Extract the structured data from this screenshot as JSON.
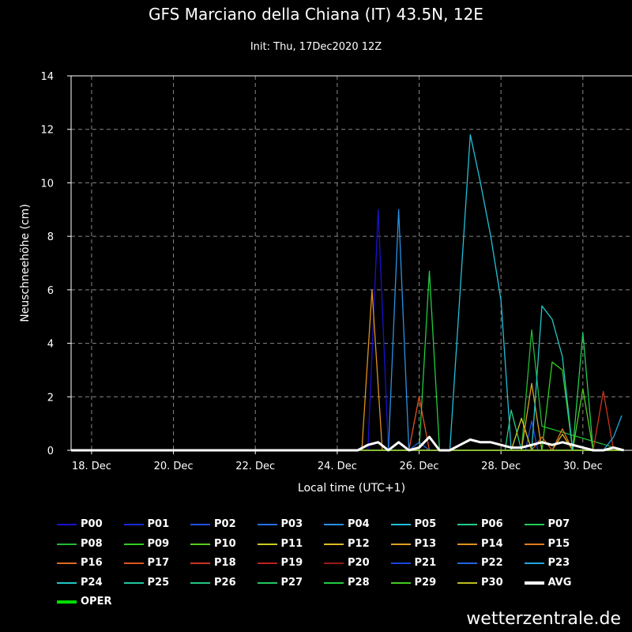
{
  "title": "GFS Marciano della Chiana (IT) 43.5N, 12E",
  "subtitle": "Init: Thu, 17Dec2020 12Z",
  "watermark": "wetterzentrale.de",
  "chart_data": {
    "type": "line",
    "xlabel": "Local time (UTC+1)",
    "ylabel": "Neuschneehöhe (cm)",
    "xlim": [
      17.5,
      31.2
    ],
    "ylim": [
      0,
      14
    ],
    "x_ticks": [
      18,
      20,
      22,
      24,
      26,
      28,
      30
    ],
    "x_tick_labels": [
      "18. Dec",
      "20. Dec",
      "22. Dec",
      "24. Dec",
      "26. Dec",
      "28. Dec",
      "30. Dec"
    ],
    "y_ticks": [
      0,
      2,
      4,
      6,
      8,
      10,
      12,
      14
    ],
    "y_tick_labels": [
      "0",
      "2",
      "4",
      "6",
      "8",
      "10",
      "12",
      "14"
    ],
    "grid": true,
    "series": [
      {
        "name": "P00",
        "color": "#1a10d0",
        "x": [
          17.5,
          24.75,
          25.0,
          25.25,
          31.0
        ],
        "y": [
          0,
          0,
          9.0,
          0,
          0
        ]
      },
      {
        "name": "P01",
        "color": "#1a2ad8",
        "x": [
          17.5,
          31.0
        ],
        "y": [
          0,
          0
        ]
      },
      {
        "name": "P02",
        "color": "#1f4fe0",
        "x": [
          17.5,
          28.6,
          28.75,
          28.9,
          31.0
        ],
        "y": [
          0,
          0,
          1.1,
          0,
          0
        ]
      },
      {
        "name": "P03",
        "color": "#2470e6",
        "x": [
          17.5,
          31.0
        ],
        "y": [
          0,
          0
        ]
      },
      {
        "name": "P04",
        "color": "#2a90e6",
        "x": [
          17.5,
          25.25,
          25.5,
          25.75,
          31.0
        ],
        "y": [
          0,
          0,
          9.0,
          0,
          0
        ]
      },
      {
        "name": "P05",
        "color": "#21c0d8",
        "x": [
          17.5,
          26.75,
          27.25,
          27.5,
          27.75,
          28.0,
          28.25,
          28.5,
          31.0
        ],
        "y": [
          0,
          0,
          11.8,
          10.0,
          8.0,
          5.6,
          0,
          0,
          0
        ]
      },
      {
        "name": "P06",
        "color": "#22cc88",
        "x": [
          17.5,
          28.1,
          28.25,
          28.5,
          31.0
        ],
        "y": [
          0,
          0,
          1.5,
          0,
          0
        ]
      },
      {
        "name": "P07",
        "color": "#22cc55",
        "x": [
          17.5,
          29.75,
          30.0,
          30.25,
          31.0
        ],
        "y": [
          0,
          0,
          4.4,
          0,
          0
        ]
      },
      {
        "name": "P08",
        "color": "#22bb33",
        "x": [
          17.5,
          28.5,
          28.75,
          29.0,
          31.0
        ],
        "y": [
          0,
          0,
          4.5,
          0.9,
          0
        ]
      },
      {
        "name": "P09",
        "color": "#33cc22",
        "x": [
          17.5,
          29.0,
          29.25,
          29.5,
          29.75,
          31.0
        ],
        "y": [
          0,
          0,
          3.3,
          3.0,
          0,
          0
        ]
      },
      {
        "name": "P10",
        "color": "#55cc22",
        "x": [
          17.5,
          29.75,
          30.0,
          30.25,
          31.0
        ],
        "y": [
          0,
          0,
          2.3,
          0,
          0
        ]
      },
      {
        "name": "P11",
        "color": "#cccc22",
        "x": [
          17.5,
          28.25,
          28.5,
          28.75,
          31.0
        ],
        "y": [
          0,
          0,
          1.2,
          0,
          0
        ]
      },
      {
        "name": "P12",
        "color": "#ddbb22",
        "x": [
          17.5,
          29.25,
          29.5,
          29.75,
          31.0
        ],
        "y": [
          0,
          0,
          0.6,
          0,
          0
        ]
      },
      {
        "name": "P13",
        "color": "#dda322",
        "x": [
          17.5,
          28.5,
          28.75,
          29.0,
          31.0
        ],
        "y": [
          0,
          0,
          2.5,
          0,
          0
        ]
      },
      {
        "name": "P14",
        "color": "#e09020",
        "x": [
          17.5,
          24.6,
          24.85,
          25.1,
          31.0
        ],
        "y": [
          0,
          0,
          6.0,
          0,
          0
        ]
      },
      {
        "name": "P15",
        "color": "#e07a20",
        "x": [
          17.5,
          29.25,
          29.5,
          29.75,
          31.0
        ],
        "y": [
          0,
          0,
          0.8,
          0,
          0
        ]
      },
      {
        "name": "P16",
        "color": "#dd6a20",
        "x": [
          17.5,
          28.75,
          29.0,
          29.25,
          31.0
        ],
        "y": [
          0,
          0,
          0.5,
          0,
          0
        ]
      },
      {
        "name": "P17",
        "color": "#dd5520",
        "x": [
          17.5,
          25.75,
          26.0,
          26.25,
          31.0
        ],
        "y": [
          0,
          0,
          2.0,
          0,
          0
        ]
      },
      {
        "name": "P18",
        "color": "#cc3322",
        "x": [
          17.5,
          30.25,
          30.5,
          30.75,
          31.0
        ],
        "y": [
          0,
          0,
          2.2,
          0,
          0
        ]
      },
      {
        "name": "P19",
        "color": "#bb2222",
        "x": [
          17.5,
          31.0
        ],
        "y": [
          0,
          0
        ]
      },
      {
        "name": "P20",
        "color": "#991a1a",
        "x": [
          17.5,
          31.0
        ],
        "y": [
          0,
          0
        ]
      },
      {
        "name": "P21",
        "color": "#1a44dd",
        "x": [
          17.5,
          31.0
        ],
        "y": [
          0,
          0
        ]
      },
      {
        "name": "P22",
        "color": "#2266e0",
        "x": [
          17.5,
          25.75,
          26.0,
          26.25,
          31.0
        ],
        "y": [
          0,
          0,
          0.3,
          0,
          0
        ]
      },
      {
        "name": "P23",
        "color": "#22a6e0",
        "x": [
          17.5,
          30.5,
          30.75,
          30.95
        ],
        "y": [
          0,
          0,
          0.5,
          1.3
        ]
      },
      {
        "name": "P24",
        "color": "#22c6c6",
        "x": [
          17.5,
          28.75,
          29.0,
          29.25,
          29.5,
          29.75,
          30.0,
          31.0
        ],
        "y": [
          0,
          0,
          5.4,
          4.9,
          3.5,
          0,
          0,
          0
        ]
      },
      {
        "name": "P25",
        "color": "#22c6a0",
        "x": [
          17.5,
          31.0
        ],
        "y": [
          0,
          0
        ]
      },
      {
        "name": "P26",
        "color": "#22c680",
        "x": [
          17.5,
          31.0
        ],
        "y": [
          0,
          0
        ]
      },
      {
        "name": "P27",
        "color": "#22c660",
        "x": [
          17.5,
          31.0
        ],
        "y": [
          0,
          0
        ]
      },
      {
        "name": "P28",
        "color": "#22cc40",
        "x": [
          17.5,
          26.0,
          26.25,
          26.5,
          31.0
        ],
        "y": [
          0,
          0,
          6.7,
          0,
          0
        ]
      },
      {
        "name": "P29",
        "color": "#44cc22",
        "x": [
          17.5,
          31.0
        ],
        "y": [
          0,
          0
        ]
      },
      {
        "name": "P30",
        "color": "#bbbb22",
        "x": [
          17.5,
          31.0
        ],
        "y": [
          0,
          0
        ]
      },
      {
        "name": "AVG",
        "color": "#ffffff",
        "x": [
          17.5,
          24.5,
          24.75,
          25.0,
          25.25,
          25.5,
          25.75,
          26.0,
          26.25,
          26.5,
          26.75,
          27.0,
          27.25,
          27.5,
          27.75,
          28.0,
          28.25,
          28.5,
          28.75,
          29.0,
          29.25,
          29.5,
          29.75,
          30.0,
          30.25,
          30.5,
          30.75,
          31.0
        ],
        "y": [
          0,
          0,
          0.2,
          0.3,
          0.0,
          0.3,
          0.0,
          0.1,
          0.5,
          0.0,
          0.0,
          0.2,
          0.4,
          0.3,
          0.3,
          0.2,
          0.1,
          0.1,
          0.2,
          0.3,
          0.2,
          0.3,
          0.2,
          0.1,
          0.0,
          0.0,
          0.1,
          0.0
        ]
      },
      {
        "name": "OPER",
        "color": "#00dd00",
        "x": [],
        "y": []
      }
    ]
  }
}
